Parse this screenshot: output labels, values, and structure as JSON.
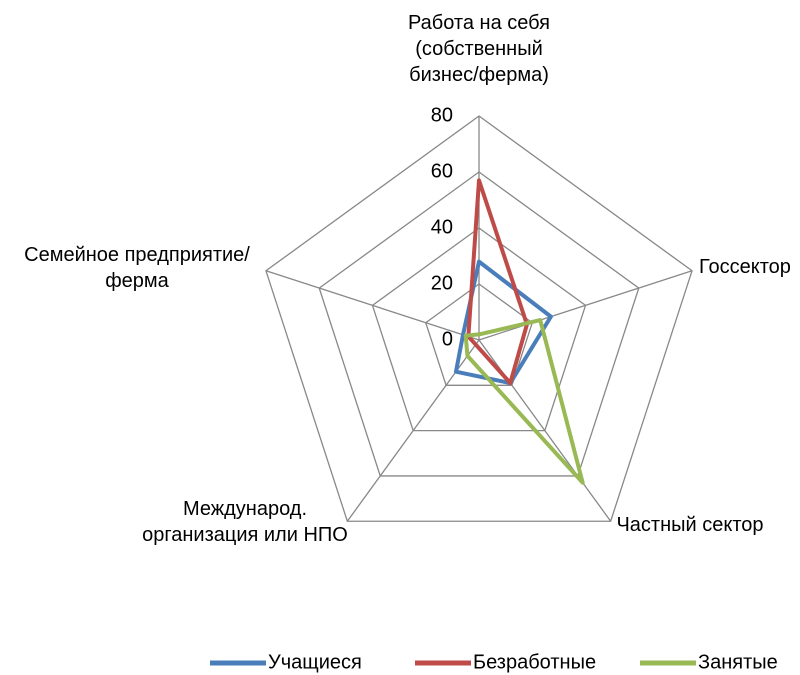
{
  "chart_data": {
    "type": "radar",
    "categories": [
      "Работа на себя\n(собственный\nбизнес/ферма)",
      "Госсектор",
      "Частный сектор",
      "Международ.\nорганизация или НПО",
      "Семейное предприятие/\nферма"
    ],
    "series": [
      {
        "name": "Учащиеся",
        "color": "#4a7ebb",
        "values": [
          28,
          27,
          19,
          14,
          6
        ]
      },
      {
        "name": "Безработные",
        "color": "#be4b48",
        "values": [
          57,
          18,
          19,
          2,
          4
        ]
      },
      {
        "name": "Занятые",
        "color": "#98b954",
        "values": [
          2,
          23,
          63,
          7,
          5
        ]
      }
    ],
    "ylim": [
      0,
      80
    ],
    "yticks": [
      0,
      20,
      40,
      60,
      80
    ],
    "grid": true,
    "legend": "bottom"
  }
}
